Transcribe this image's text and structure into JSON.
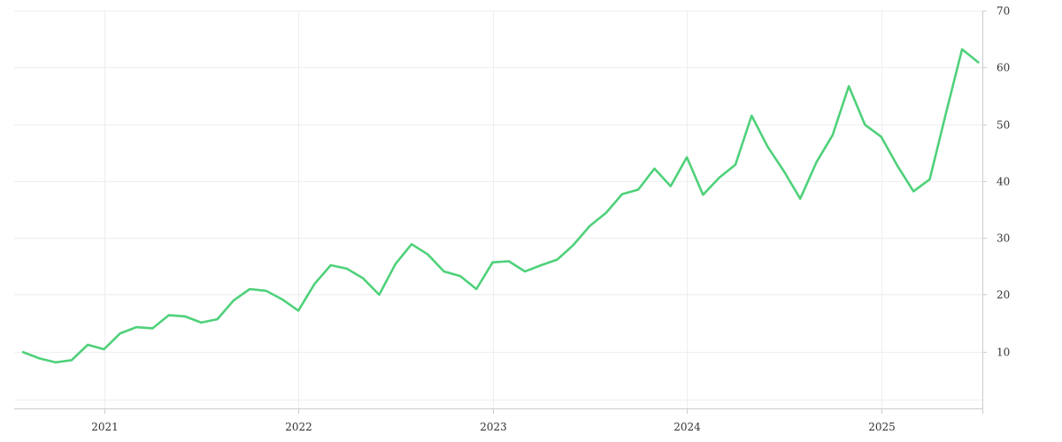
{
  "chart_data": {
    "type": "line",
    "title": "",
    "xlabel": "",
    "ylabel": "",
    "xlim": [
      "2020-08",
      "2025-07"
    ],
    "ylim": [
      0,
      70
    ],
    "grid": true,
    "legend": "none",
    "color": "#4fd17a",
    "x_ticks": [
      {
        "date": "2021-01",
        "label": "2021"
      },
      {
        "date": "2022-01",
        "label": "2022"
      },
      {
        "date": "2023-01",
        "label": "2023"
      },
      {
        "date": "2024-01",
        "label": "2024"
      },
      {
        "date": "2025-01",
        "label": "2025"
      }
    ],
    "y_ticks": [
      {
        "value": 10,
        "label": "10"
      },
      {
        "value": 20,
        "label": "20"
      },
      {
        "value": 30,
        "label": "30"
      },
      {
        "value": 40,
        "label": "40"
      },
      {
        "value": 50,
        "label": "50"
      },
      {
        "value": 60,
        "label": "60"
      },
      {
        "value": 70,
        "label": "70"
      }
    ],
    "series": [
      {
        "x": [
          "2020-08",
          "2020-09",
          "2020-10",
          "2020-11",
          "2020-12",
          "2021-01",
          "2021-02",
          "2021-03",
          "2021-04",
          "2021-05",
          "2021-06",
          "2021-07",
          "2021-08",
          "2021-09",
          "2021-10",
          "2021-11",
          "2021-12",
          "2022-01",
          "2022-02",
          "2022-03",
          "2022-04",
          "2022-05",
          "2022-06",
          "2022-07",
          "2022-08",
          "2022-09",
          "2022-10",
          "2022-11",
          "2022-12",
          "2023-01",
          "2023-02",
          "2023-03",
          "2023-04",
          "2023-05",
          "2023-06",
          "2023-07",
          "2023-08",
          "2023-09",
          "2023-10",
          "2023-11",
          "2023-12",
          "2024-01",
          "2024-02",
          "2024-03",
          "2024-04",
          "2024-05",
          "2024-06",
          "2024-07",
          "2024-08",
          "2024-09",
          "2024-10",
          "2024-11",
          "2024-12",
          "2025-01",
          "2025-02",
          "2025-03",
          "2025-04",
          "2025-05",
          "2025-06",
          "2025-07"
        ],
        "values": [
          9.9,
          8.8,
          8.1,
          8.5,
          11.2,
          10.4,
          13.2,
          14.3,
          14.1,
          16.4,
          16.2,
          15.1,
          15.7,
          19.0,
          21.0,
          20.7,
          19.2,
          17.2,
          21.9,
          25.2,
          24.6,
          22.9,
          20.0,
          25.4,
          28.9,
          27.1,
          24.1,
          23.3,
          21.0,
          25.7,
          25.9,
          24.1,
          25.2,
          26.2,
          28.8,
          32.1,
          34.4,
          37.7,
          38.5,
          42.2,
          39.1,
          44.2,
          37.6,
          40.6,
          42.9,
          51.5,
          46.0,
          41.7,
          36.9,
          43.3,
          48.1,
          56.7,
          49.9,
          47.8,
          42.7,
          38.2,
          40.3,
          51.9,
          63.2,
          60.9
        ]
      }
    ]
  }
}
